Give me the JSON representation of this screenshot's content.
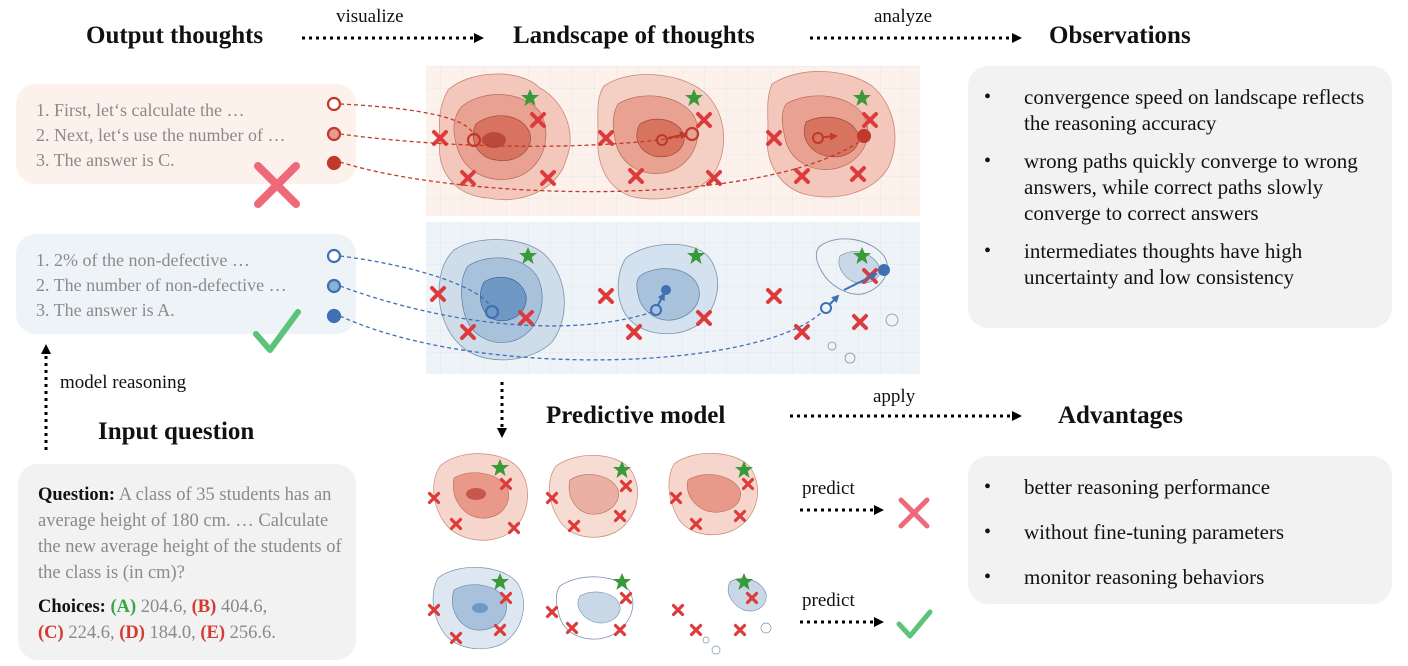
{
  "headings": {
    "output_thoughts": "Output thoughts",
    "landscape": "Landscape of thoughts",
    "observations": "Observations",
    "predictive_model": "Predictive model",
    "advantages": "Advantages",
    "input_question": "Input question"
  },
  "arrow_labels": {
    "visualize": "visualize",
    "analyze": "analyze",
    "apply": "apply",
    "model_reasoning": "model reasoning",
    "predict_wrong": "predict",
    "predict_correct": "predict"
  },
  "wrong_thoughts": [
    "1. First, let‘s calculate the …",
    "2. Next, let‘s use the number of …",
    "3. The answer is C."
  ],
  "correct_thoughts": [
    "1. 2% of the non-defective …",
    "2. The number of non-defective …",
    "3. The answer is A."
  ],
  "observations": [
    "convergence speed on landscape reflects the reasoning accuracy",
    "wrong paths quickly converge to wrong answers, while correct paths slowly converge to correct answers",
    "intermediates thoughts have high uncertainty and low consistency"
  ],
  "advantages": [
    "better reasoning performance",
    "without fine-tuning parameters",
    "monitor reasoning behaviors"
  ],
  "question": {
    "label": "Question:",
    "text": "A class of 35 students has an average height of 180 cm. … Calculate the new average height of the students of the class is (in cm)?",
    "choices_label": "Choices:",
    "choices": [
      {
        "key": "(A)",
        "value": "204.6,"
      },
      {
        "key": "(B)",
        "value": "404.6,"
      },
      {
        "key": "(C)",
        "value": "224.6,"
      },
      {
        "key": "(D)",
        "value": "184.0,"
      },
      {
        "key": "(E)",
        "value": "256.6."
      }
    ]
  },
  "colors": {
    "wrong": "#c0392b",
    "correct": "#3f6fb5",
    "wrong_bg": "#fdf1ec",
    "correct_bg": "#eef3f8",
    "panel_bg": "#f2f2f2",
    "answer_star": "#3a9a3a",
    "answer_cross": "#dd3b3b",
    "check": "#5cc47a",
    "big_cross": "#ee6a7a"
  },
  "icons": {
    "wrong_result": "cross-icon",
    "correct_result": "check-icon",
    "correct_answer": "star-icon",
    "wrong_answer": "cross-marker-icon"
  }
}
